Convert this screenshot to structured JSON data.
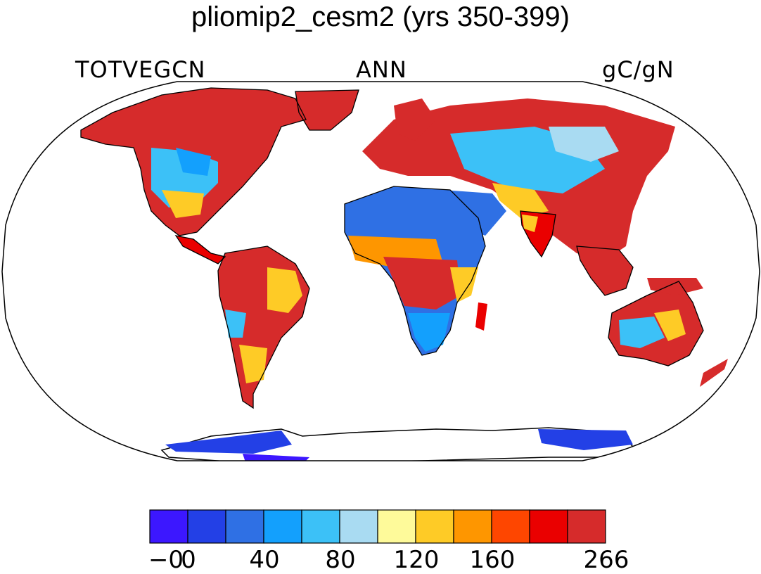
{
  "title": "pliomip2_cesm2 (yrs 350-399)",
  "variable_label": "TOTVEGCN",
  "season_label": "ANN",
  "units_label": "gC/gN",
  "colorbar": {
    "colors": [
      "#3c17ff",
      "#2340e6",
      "#2f70e4",
      "#13a0fd",
      "#3cc1f7",
      "#a9dbf2",
      "#fefa9a",
      "#fecb26",
      "#fe9600",
      "#fe4600",
      "#ea0000",
      "#d62b2b"
    ],
    "tick_labels": [
      "−0",
      "0",
      "40",
      "80",
      "120",
      "160",
      "266"
    ]
  },
  "map": {
    "projection": "Robinson",
    "ocean_color": "#ffffff",
    "coastline_color": "#000000"
  }
}
